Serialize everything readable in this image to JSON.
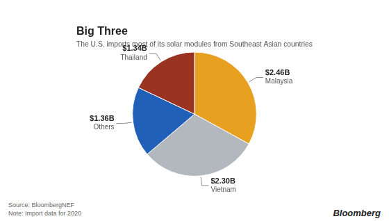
{
  "chart_data": {
    "type": "pie",
    "title": "Big Three",
    "subtitle": "The U.S. imports most of its solar modules from Southeast Asian countries",
    "categories": [
      "Malaysia",
      "Vietnam",
      "Others",
      "Thailand"
    ],
    "values": [
      2.46,
      2.3,
      1.36,
      1.34
    ],
    "value_labels": [
      "$2.46B",
      "$2.30B",
      "$1.36B",
      "$1.34B"
    ],
    "colors": [
      "#E8A020",
      "#B2B8BE",
      "#2060B8",
      "#993322"
    ],
    "data_labels": true,
    "annotations": [
      "Source: BloombergNEF",
      "Note: Import data for 2020",
      "Bloomberg"
    ]
  }
}
